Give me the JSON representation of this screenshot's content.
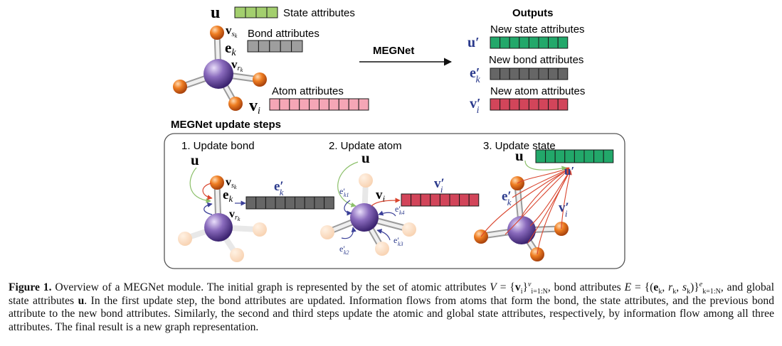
{
  "top": {
    "u_symbol": "u",
    "state_label": "State attributes",
    "bond_label": "Bond attributes",
    "atom_label": "Atom attributes",
    "e_k": "e",
    "e_k_sub": "k",
    "v_i": "v",
    "v_i_sub": "i",
    "v_sk": "v",
    "v_sk_sub": "s",
    "v_sk_subsub": "k",
    "v_rk": "v",
    "v_rk_sub": "r",
    "v_rk_subsub": "k",
    "megnet_label": "MEGNet",
    "outputs_title": "Outputs",
    "new_state_label": "New state attributes",
    "new_bond_label": "New bond attributes",
    "new_atom_label": "New atom attributes",
    "u_prime": "u′",
    "e_prime": "e′",
    "e_prime_sub": "k",
    "v_prime": "v′",
    "v_prime_sub": "i"
  },
  "steps_title": "MEGNet update steps",
  "steps": [
    {
      "label": "1. Update bond"
    },
    {
      "label": "2. Update atom"
    },
    {
      "label": "3. Update state"
    }
  ],
  "step2_labels": {
    "ek1": "e′",
    "ek1_sub": "k1",
    "ek2": "e′",
    "ek2_sub": "k2",
    "ek3": "e′",
    "ek3_sub": "k3",
    "ek4": "e′",
    "ek4_sub": "k4"
  },
  "colors": {
    "state": "#a3cf6e",
    "bond": "#9e9e9e",
    "atom": "#f5a6b6",
    "new_state": "#22a86a",
    "new_bond": "#666666",
    "new_atom": "#d2455a",
    "blue_symbol": "#2b3a8c",
    "orange": "#e2711e",
    "purple": "#7a5aa6",
    "arrow_green": "#8cc06a",
    "arrow_red": "#d9452e",
    "arrow_blue": "#3a3f98"
  },
  "caption": {
    "figure_label": "Figure 1.",
    "t1": " Overview of a MEGNet module. The initial graph is represented by the set of atomic attributes ",
    "V_eq": "V",
    "t2": " = {",
    "v_bold": "v",
    "v_sub": "i",
    "t3": "}",
    "v_sup": "v",
    "v_range": "i=1:N",
    "t4": ", bond attributes ",
    "E_eq": "E",
    "t5": " = {(",
    "e_bold": "e",
    "e_sub": "k",
    "t6": ", ",
    "r_it": "r",
    "r_sub": "k",
    "t7": ",",
    "s_it": "s",
    "s_sub": "k",
    "t8": ")}",
    "e_sup": "e",
    "e_range": "k=1:N",
    "t9": ", and global state attributes ",
    "u_bold": "u",
    "t10": ". In the first update step, the bond attributes are updated. Information flows from atoms that form the bond, the state attributes, and the previous bond attribute to the new bond attributes. Similarly, the second and third steps update the atomic and global state attributes, respectively, by information flow among all three attributes. The final result is a new graph representation."
  }
}
